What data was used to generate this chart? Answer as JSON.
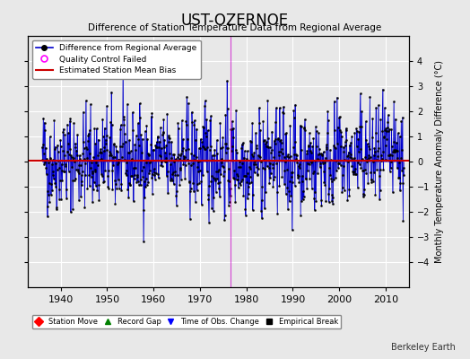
{
  "title": "UST-OZERNOE",
  "subtitle": "Difference of Station Temperature Data from Regional Average",
  "ylabel": "Monthly Temperature Anomaly Difference (°C)",
  "xlim": [
    1933,
    2015
  ],
  "ylim": [
    -5,
    5
  ],
  "yticks": [
    -4,
    -3,
    -2,
    -1,
    0,
    1,
    2,
    3,
    4
  ],
  "xticks": [
    1940,
    1950,
    1960,
    1970,
    1980,
    1990,
    2000,
    2010
  ],
  "start_year": 1936,
  "end_year": 2013,
  "mean_bias": 0.05,
  "background_color": "#e8e8e8",
  "plot_bg_color": "#e8e8e8",
  "line_color": "#0000cc",
  "bias_color": "#cc0000",
  "marker_color": "#000000",
  "qc_color": "#ff00ff",
  "grid_color": "#ffffff",
  "seed": 42,
  "station_move_times": [],
  "record_gap_times": [],
  "obs_change_times": [
    1976.5
  ],
  "empirical_break_times": [],
  "footnote": "Berkeley Earth"
}
